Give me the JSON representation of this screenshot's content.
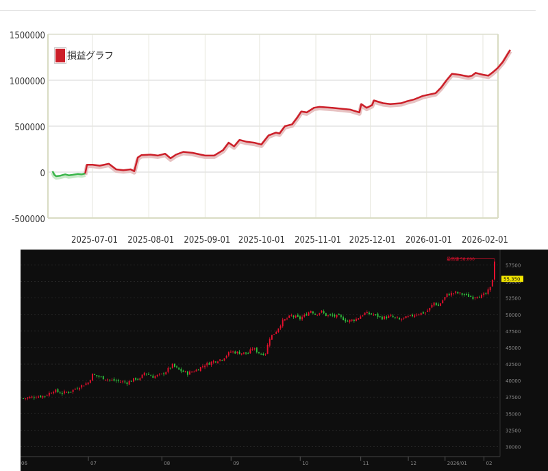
{
  "pl_chart": {
    "type": "line",
    "legend_label": "損益グラフ",
    "legend_position": "top-left",
    "y_ticks": [
      1500000,
      1000000,
      500000,
      0,
      -500000
    ],
    "y_tick_labels": [
      "1500000",
      "1000000",
      "500000",
      "0",
      "-500000"
    ],
    "ylim": [
      -500000,
      1500000
    ],
    "x_tick_labels": [
      "2025-07-01",
      "2025-08-01",
      "2025-09-01",
      "2025-10-01",
      "2025-11-01",
      "2025-12-01",
      "2026-01-01",
      "2026-02-01"
    ],
    "colors": {
      "positive": "#cc1f29",
      "negative": "#39b54a",
      "axis": "#d9dcc3",
      "grid": "#e3e3e3"
    },
    "series": [
      {
        "values": [
          [
            "2025-06-09",
            10000
          ],
          [
            "2025-06-10",
            -30000
          ],
          [
            "2025-06-11",
            -45000
          ],
          [
            "2025-06-13",
            -40000
          ],
          [
            "2025-06-16",
            -25000
          ],
          [
            "2025-06-18",
            -35000
          ],
          [
            "2025-06-20",
            -30000
          ],
          [
            "2025-06-23",
            -20000
          ],
          [
            "2025-06-25",
            -25000
          ],
          [
            "2025-06-27",
            -15000
          ],
          [
            "2025-06-28",
            80000
          ],
          [
            "2025-07-01",
            80000
          ],
          [
            "2025-07-05",
            70000
          ],
          [
            "2025-07-10",
            90000
          ],
          [
            "2025-07-14",
            30000
          ],
          [
            "2025-07-18",
            20000
          ],
          [
            "2025-07-22",
            30000
          ],
          [
            "2025-07-24",
            10000
          ],
          [
            "2025-07-26",
            160000
          ],
          [
            "2025-07-28",
            185000
          ],
          [
            "2025-08-02",
            190000
          ],
          [
            "2025-08-06",
            180000
          ],
          [
            "2025-08-10",
            200000
          ],
          [
            "2025-08-13",
            150000
          ],
          [
            "2025-08-16",
            190000
          ],
          [
            "2025-08-20",
            220000
          ],
          [
            "2025-08-25",
            210000
          ],
          [
            "2025-09-01",
            180000
          ],
          [
            "2025-09-06",
            180000
          ],
          [
            "2025-09-11",
            240000
          ],
          [
            "2025-09-14",
            320000
          ],
          [
            "2025-09-17",
            280000
          ],
          [
            "2025-09-20",
            350000
          ],
          [
            "2025-09-24",
            330000
          ],
          [
            "2025-09-28",
            320000
          ],
          [
            "2025-10-02",
            300000
          ],
          [
            "2025-10-06",
            400000
          ],
          [
            "2025-10-10",
            430000
          ],
          [
            "2025-10-12",
            420000
          ],
          [
            "2025-10-15",
            500000
          ],
          [
            "2025-10-19",
            520000
          ],
          [
            "2025-10-22",
            600000
          ],
          [
            "2025-10-24",
            660000
          ],
          [
            "2025-10-27",
            650000
          ],
          [
            "2025-10-31",
            700000
          ],
          [
            "2025-11-03",
            710000
          ],
          [
            "2025-11-10",
            700000
          ],
          [
            "2025-11-20",
            680000
          ],
          [
            "2025-11-25",
            650000
          ],
          [
            "2025-11-26",
            740000
          ],
          [
            "2025-11-29",
            700000
          ],
          [
            "2025-12-02",
            730000
          ],
          [
            "2025-12-03",
            780000
          ],
          [
            "2025-12-08",
            750000
          ],
          [
            "2025-12-12",
            740000
          ],
          [
            "2025-12-18",
            750000
          ],
          [
            "2025-12-21",
            770000
          ],
          [
            "2025-12-25",
            790000
          ],
          [
            "2025-12-30",
            830000
          ],
          [
            "2026-01-06",
            860000
          ],
          [
            "2026-01-09",
            920000
          ],
          [
            "2026-01-12",
            1000000
          ],
          [
            "2026-01-15",
            1070000
          ],
          [
            "2026-01-19",
            1060000
          ],
          [
            "2026-01-24",
            1040000
          ],
          [
            "2026-01-26",
            1050000
          ],
          [
            "2026-01-28",
            1080000
          ],
          [
            "2026-02-01",
            1060000
          ],
          [
            "2026-02-04",
            1050000
          ],
          [
            "2026-02-06",
            1080000
          ],
          [
            "2026-02-09",
            1130000
          ],
          [
            "2026-02-12",
            1200000
          ],
          [
            "2026-02-16",
            1330000
          ]
        ]
      }
    ]
  },
  "price_chart": {
    "type": "candlestick",
    "y_tick_labels": [
      "57500",
      "55000",
      "52500",
      "50000",
      "47500",
      "45000",
      "42500",
      "40000",
      "37500",
      "35000",
      "32500",
      "30000"
    ],
    "y_ticks": [
      57500,
      55000,
      52500,
      50000,
      47500,
      45000,
      42500,
      40000,
      37500,
      35000,
      32500,
      30000
    ],
    "ylim": [
      28500,
      59000
    ],
    "x_tick_labels": [
      "06",
      "07",
      "08",
      "09",
      "10",
      "11",
      "12",
      "2026/01",
      "02"
    ],
    "last_price_label": "55,350",
    "annotation_label": "最高値 58,000",
    "colors": {
      "up": "#e8102e",
      "down": "#2fc33d",
      "background": "#0e0e0e",
      "grid": "#2a2a2a",
      "price_tag": "#f3e600"
    },
    "trend_points": [
      [
        0,
        37300
      ],
      [
        6,
        37600
      ],
      [
        10,
        37700
      ],
      [
        14,
        38500
      ],
      [
        18,
        38100
      ],
      [
        22,
        38400
      ],
      [
        26,
        39100
      ],
      [
        30,
        39700
      ],
      [
        32,
        40900
      ],
      [
        36,
        40500
      ],
      [
        40,
        40100
      ],
      [
        44,
        39900
      ],
      [
        48,
        39700
      ],
      [
        52,
        40300
      ],
      [
        54,
        40200
      ],
      [
        56,
        41200
      ],
      [
        60,
        40600
      ],
      [
        64,
        40900
      ],
      [
        66,
        41400
      ],
      [
        69,
        42300
      ],
      [
        72,
        41600
      ],
      [
        76,
        41100
      ],
      [
        80,
        41600
      ],
      [
        84,
        42400
      ],
      [
        88,
        42900
      ],
      [
        92,
        43300
      ],
      [
        96,
        44400
      ],
      [
        100,
        44200
      ],
      [
        104,
        44100
      ],
      [
        106,
        44900
      ],
      [
        110,
        44000
      ],
      [
        112,
        44200
      ],
      [
        114,
        46500
      ],
      [
        117,
        47500
      ],
      [
        120,
        49000
      ],
      [
        124,
        49800
      ],
      [
        128,
        49400
      ],
      [
        130,
        49800
      ],
      [
        133,
        50600
      ],
      [
        135,
        50100
      ],
      [
        138,
        50400
      ],
      [
        140,
        49900
      ],
      [
        143,
        49800
      ],
      [
        146,
        49700
      ],
      [
        150,
        49000
      ],
      [
        154,
        49300
      ],
      [
        158,
        50200
      ],
      [
        162,
        50000
      ],
      [
        166,
        49500
      ],
      [
        170,
        49700
      ],
      [
        174,
        49200
      ],
      [
        178,
        49600
      ],
      [
        182,
        50100
      ],
      [
        186,
        50300
      ],
      [
        188,
        50900
      ],
      [
        190,
        51800
      ],
      [
        192,
        51300
      ],
      [
        196,
        53000
      ],
      [
        200,
        53300
      ],
      [
        204,
        53000
      ],
      [
        208,
        52600
      ],
      [
        210,
        52900
      ],
      [
        212,
        52800
      ],
      [
        214,
        53100
      ],
      [
        216,
        54000
      ],
      [
        217,
        55400
      ],
      [
        218,
        58000
      ]
    ],
    "candle_count": 219
  }
}
